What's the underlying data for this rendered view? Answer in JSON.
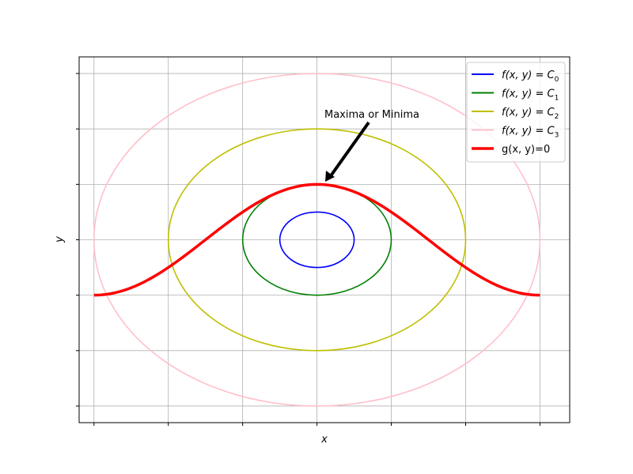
{
  "chart_data": {
    "type": "line",
    "title": "",
    "xlabel": "x",
    "ylabel": "y",
    "xlim": [
      -3.2,
      3.4
    ],
    "ylim": [
      -3.3,
      3.3
    ],
    "xticks": [
      -3,
      -2,
      -1,
      0,
      1,
      2,
      3
    ],
    "yticks": [
      -3,
      -2,
      -1,
      0,
      1,
      2,
      3
    ],
    "tick_labels_visible": false,
    "grid": true,
    "legend_placement": "top-right",
    "contours": [
      {
        "name": "f(x, y) = C0",
        "legend_base": "f(x, y) = C",
        "legend_sub": "0",
        "color": "#0000ff",
        "rx": 0.5,
        "ry": 0.5
      },
      {
        "name": "f(x, y) = C1",
        "legend_base": "f(x, y) = C",
        "legend_sub": "1",
        "color": "#008000",
        "rx": 1.0,
        "ry": 1.0
      },
      {
        "name": "f(x, y) = C2",
        "legend_base": "f(x, y) = C",
        "legend_sub": "2",
        "color": "#bfbf00",
        "rx": 2.0,
        "ry": 2.0
      },
      {
        "name": "f(x, y) = C3",
        "legend_base": "f(x, y) = C",
        "legend_sub": "3",
        "color": "#ffc0cb",
        "rx": 3.0,
        "ry": 3.0
      }
    ],
    "constraint": {
      "name": "g(x, y)=0",
      "color": "#ff0000",
      "x": [
        -3.0,
        -2.5,
        -2.0,
        -1.5,
        -1.0,
        -0.5,
        0.0,
        0.5,
        1.0,
        1.5,
        2.0,
        2.5,
        3.0
      ],
      "y": [
        -1.0,
        -0.71,
        -0.31,
        0.15,
        0.55,
        0.86,
        1.0,
        0.86,
        0.55,
        0.15,
        -0.31,
        -0.71,
        -1.0
      ]
    },
    "annotation": {
      "text": "Maxima or Minima",
      "point": [
        0,
        1
      ],
      "text_at": [
        0,
        2.2
      ]
    }
  }
}
